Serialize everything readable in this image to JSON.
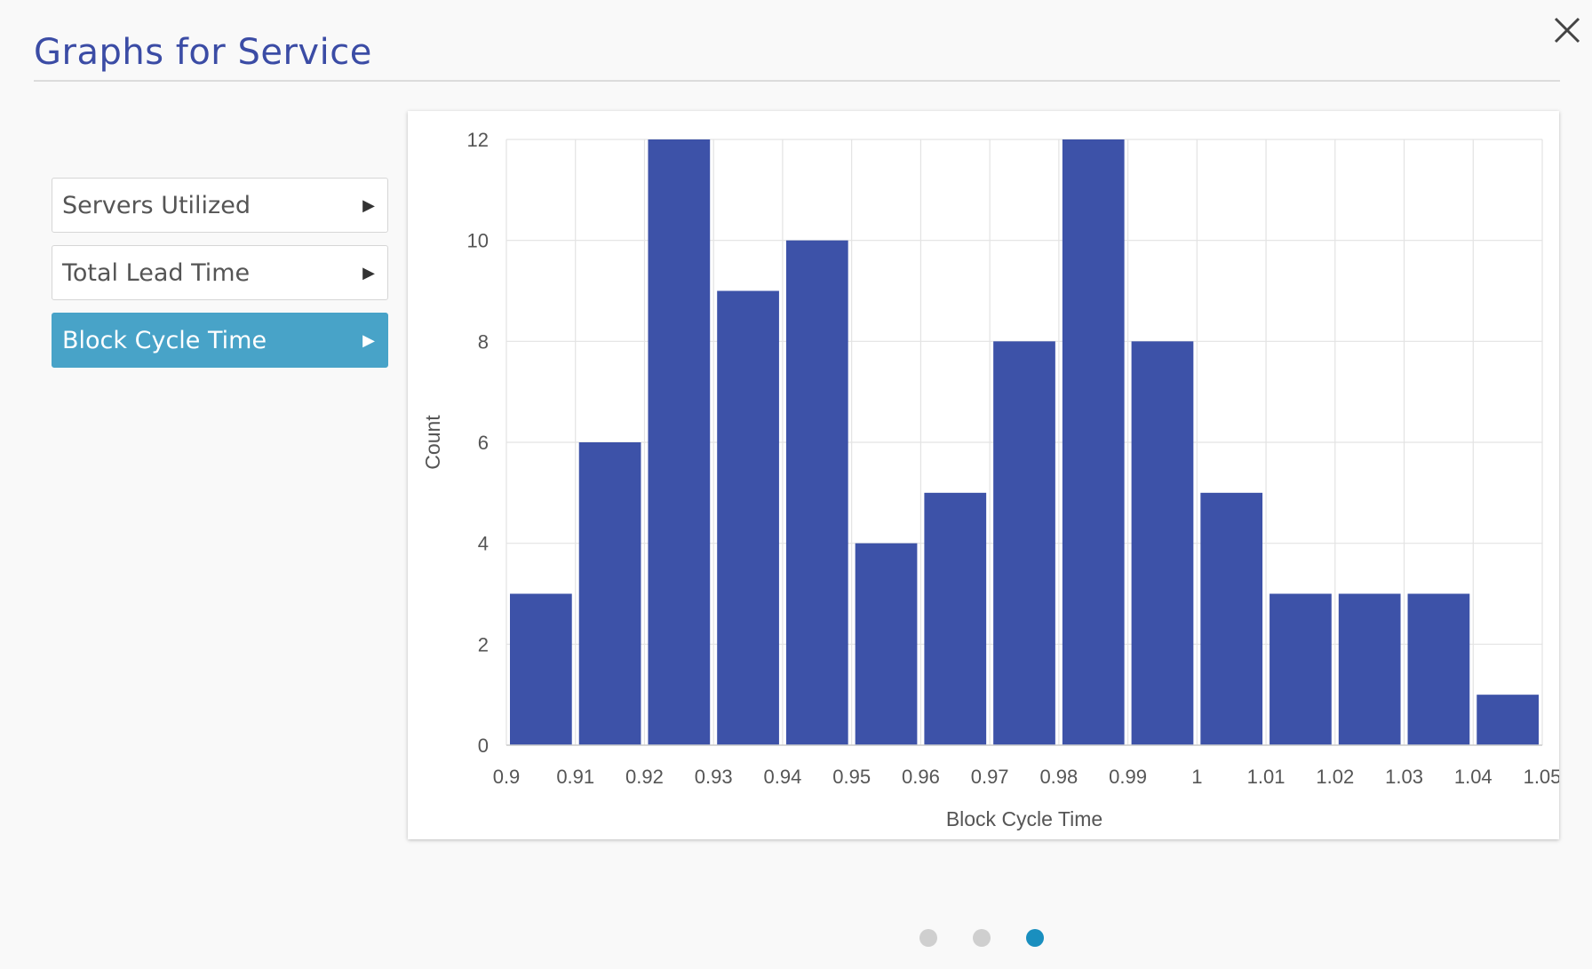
{
  "modal": {
    "title": "Graphs for Service"
  },
  "sidebar": {
    "items": [
      {
        "label": "Servers Utilized",
        "active": false
      },
      {
        "label": "Total Lead Time",
        "active": false
      },
      {
        "label": "Block Cycle Time",
        "active": true
      }
    ]
  },
  "pagination": {
    "total": 3,
    "current": 3
  },
  "colors": {
    "title": "#3b4ca5",
    "bar": "#3d52a8",
    "active_item": "#48a3c8",
    "active_dot": "#1a8fbf"
  },
  "chart_data": {
    "type": "bar",
    "title": "",
    "xlabel": "Block Cycle Time",
    "ylabel": "Count",
    "x_ticks": [
      "0.9",
      "0.91",
      "0.92",
      "0.93",
      "0.94",
      "0.95",
      "0.96",
      "0.97",
      "0.98",
      "0.99",
      "1",
      "1.01",
      "1.02",
      "1.03",
      "1.04",
      "1.05"
    ],
    "y_ticks": [
      "0",
      "2",
      "4",
      "6",
      "8",
      "10",
      "12"
    ],
    "bin_start": [
      0.9,
      0.91,
      0.92,
      0.93,
      0.94,
      0.95,
      0.96,
      0.97,
      0.98,
      0.99,
      1.0,
      1.01,
      1.02,
      1.03,
      1.04
    ],
    "bin_width": 0.01,
    "values": [
      3,
      6,
      12,
      9,
      10,
      4,
      5,
      8,
      12,
      8,
      5,
      3,
      3,
      3,
      1
    ],
    "xlim": [
      0.9,
      1.05
    ],
    "ylim": [
      0,
      12
    ],
    "grid": true,
    "legend": "none"
  }
}
